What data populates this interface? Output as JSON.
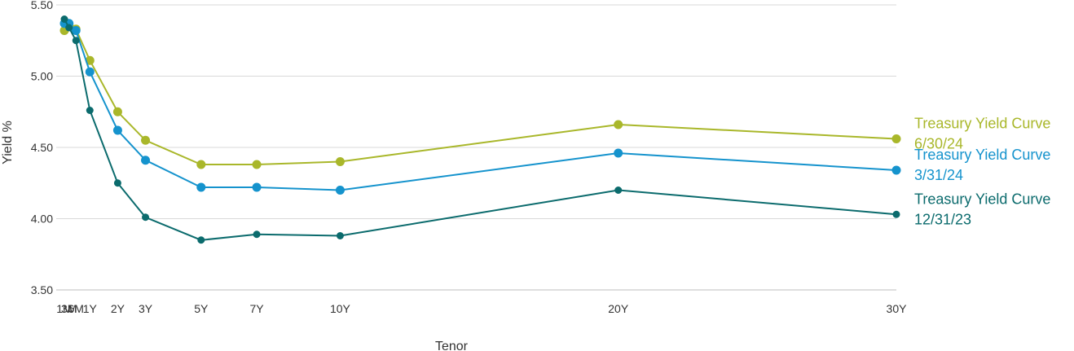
{
  "chart_data": {
    "type": "line",
    "xlabel": "Tenor",
    "ylabel": "Yield %",
    "ylim": [
      3.5,
      5.5
    ],
    "yticks": [
      "3.50",
      "4.00",
      "4.50",
      "5.00",
      "5.50"
    ],
    "grid": "horizontal",
    "legend_placement": "right",
    "tenors": [
      {
        "label": "1M",
        "years": 0.0833
      },
      {
        "label": "3M",
        "years": 0.25
      },
      {
        "label": "6M",
        "years": 0.5
      },
      {
        "label": "1Y",
        "years": 1
      },
      {
        "label": "2Y",
        "years": 2
      },
      {
        "label": "3Y",
        "years": 3
      },
      {
        "label": "5Y",
        "years": 5
      },
      {
        "label": "7Y",
        "years": 7
      },
      {
        "label": "10Y",
        "years": 10
      },
      {
        "label": "20Y",
        "years": 20
      },
      {
        "label": "30Y",
        "years": 30
      }
    ],
    "series": [
      {
        "name": "Treasury Yield Curve",
        "date": "6/30/24",
        "color": "#a9b72a",
        "values": [
          5.32,
          5.36,
          5.33,
          5.11,
          4.75,
          4.55,
          4.38,
          4.38,
          4.4,
          4.66,
          4.56
        ]
      },
      {
        "name": "Treasury Yield Curve",
        "date": "3/31/24",
        "color": "#1593cd",
        "values": [
          5.37,
          5.37,
          5.32,
          5.03,
          4.62,
          4.41,
          4.22,
          4.22,
          4.2,
          4.46,
          4.34
        ]
      },
      {
        "name": "Treasury Yield Curve",
        "date": "12/31/23",
        "color": "#0b6b6d",
        "values": [
          5.4,
          5.34,
          5.25,
          4.76,
          4.25,
          4.01,
          3.85,
          3.89,
          3.88,
          4.2,
          4.03
        ]
      }
    ]
  }
}
